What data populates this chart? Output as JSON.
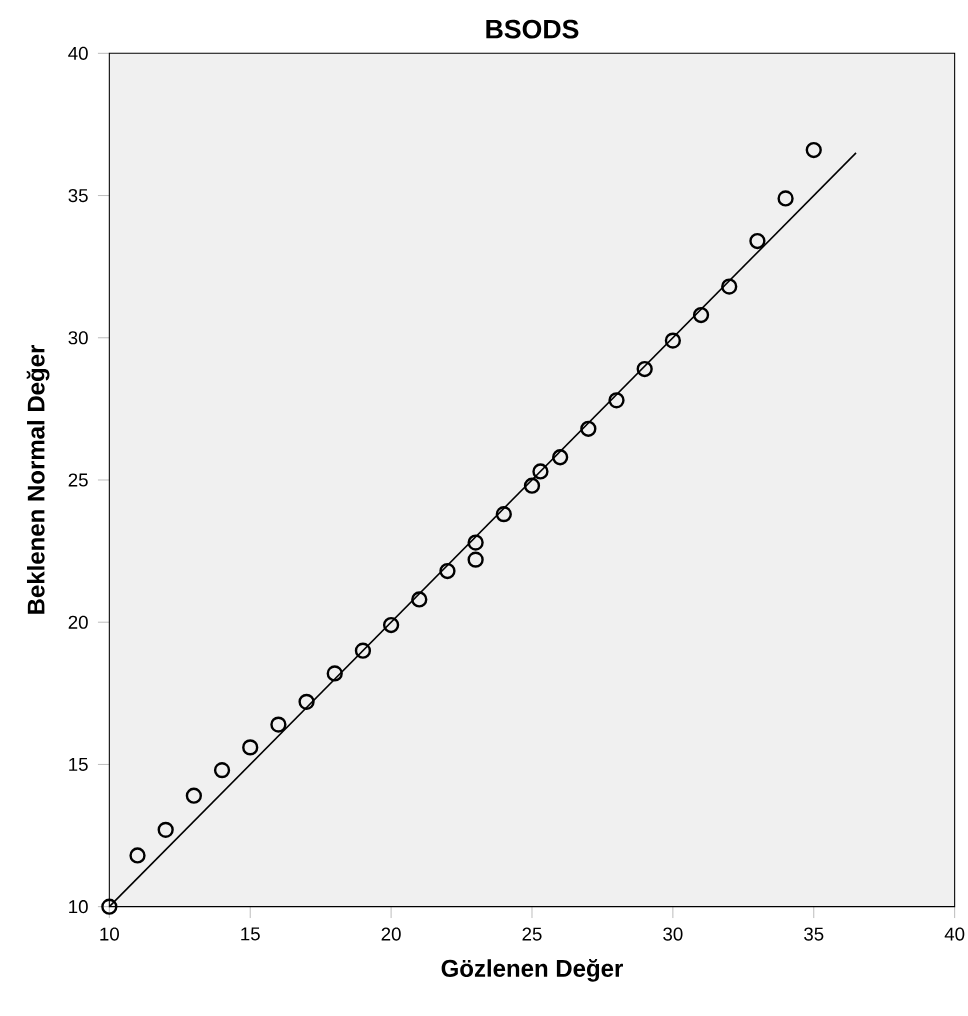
{
  "chart_data": {
    "type": "scatter",
    "title": "BSODS",
    "xlabel": "Gözlenen Değer",
    "ylabel": "Beklenen Normal Değer",
    "series": [
      {
        "color": "#000000",
        "marker": "circle",
        "x": [
          10,
          11,
          12,
          13,
          14,
          15,
          16,
          17,
          18,
          19,
          20,
          21,
          22,
          23,
          23,
          24,
          25,
          25.3,
          26,
          27,
          28,
          29,
          30,
          31,
          32,
          33,
          34,
          35
        ],
        "values": [
          10.0,
          11.8,
          12.7,
          13.9,
          14.8,
          15.6,
          16.4,
          17.2,
          18.2,
          19.0,
          19.9,
          20.8,
          21.8,
          22.8,
          22.2,
          23.8,
          24.8,
          25.3,
          25.8,
          26.8,
          27.8,
          28.9,
          29.9,
          30.8,
          31.8,
          33.4,
          34.9,
          36.6
        ]
      },
      {
        "type": "line",
        "color": "#000000",
        "marker": "none",
        "x": [
          10,
          36.5
        ],
        "values": [
          10,
          36.5
        ]
      }
    ],
    "xlim": [
      10,
      40
    ],
    "ylim": [
      10,
      40
    ],
    "xticks": [
      10,
      15,
      20,
      25,
      30,
      35,
      40
    ],
    "yticks": [
      10,
      15,
      20,
      25,
      30,
      35,
      40
    ],
    "grid": false
  }
}
